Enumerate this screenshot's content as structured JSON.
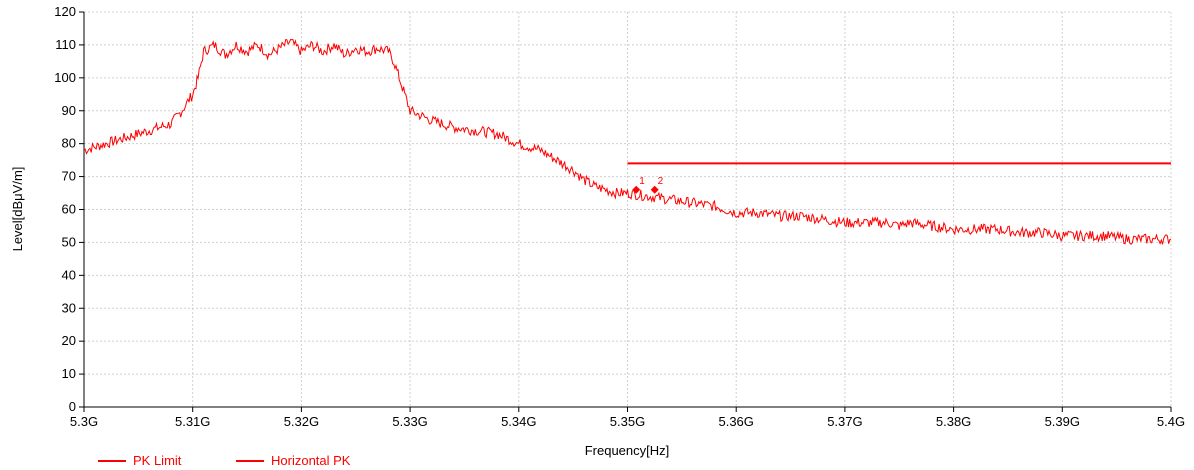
{
  "chart_data": {
    "type": "line",
    "xlabel": "Frequency[Hz]",
    "ylabel": "Level[dBμV/m]",
    "xlim": [
      5.3,
      5.4
    ],
    "ylim": [
      0,
      120
    ],
    "x_ticks": [
      {
        "value": 5.3,
        "label": "5.3G"
      },
      {
        "value": 5.31,
        "label": "5.31G"
      },
      {
        "value": 5.32,
        "label": "5.32G"
      },
      {
        "value": 5.33,
        "label": "5.33G"
      },
      {
        "value": 5.34,
        "label": "5.34G"
      },
      {
        "value": 5.35,
        "label": "5.35G"
      },
      {
        "value": 5.36,
        "label": "5.36G"
      },
      {
        "value": 5.37,
        "label": "5.37G"
      },
      {
        "value": 5.38,
        "label": "5.38G"
      },
      {
        "value": 5.39,
        "label": "5.39G"
      },
      {
        "value": 5.4,
        "label": "5.4G"
      }
    ],
    "y_ticks": [
      0,
      10,
      20,
      30,
      40,
      50,
      60,
      70,
      80,
      90,
      100,
      110,
      120
    ],
    "grid": true,
    "legend_position": "bottom-left",
    "series": [
      {
        "name": "PK Limit",
        "color": "#ff0000",
        "x": [
          5.35,
          5.4
        ],
        "y": [
          74,
          74
        ]
      },
      {
        "name": "Horizontal PK",
        "color": "#ff0000",
        "x": [
          5.3,
          5.302,
          5.304,
          5.306,
          5.308,
          5.3085,
          5.309,
          5.31,
          5.3105,
          5.311,
          5.312,
          5.313,
          5.314,
          5.315,
          5.316,
          5.317,
          5.318,
          5.319,
          5.32,
          5.321,
          5.322,
          5.323,
          5.324,
          5.325,
          5.326,
          5.327,
          5.328,
          5.3285,
          5.329,
          5.3295,
          5.33,
          5.332,
          5.334,
          5.336,
          5.338,
          5.34,
          5.342,
          5.344,
          5.345,
          5.346,
          5.347,
          5.348,
          5.349,
          5.35,
          5.352,
          5.354,
          5.356,
          5.358,
          5.36,
          5.362,
          5.364,
          5.366,
          5.368,
          5.37,
          5.372,
          5.374,
          5.375,
          5.376,
          5.378,
          5.38,
          5.382,
          5.384,
          5.386,
          5.388,
          5.39,
          5.392,
          5.394,
          5.396,
          5.398,
          5.4
        ],
        "y": [
          78,
          80,
          82,
          84,
          86,
          88,
          90,
          95,
          100,
          108,
          110,
          107,
          110,
          108,
          110,
          107,
          109,
          111,
          108,
          110,
          108,
          110,
          107,
          109,
          108,
          109,
          108,
          105,
          100,
          95,
          90,
          87,
          85,
          84,
          83,
          80,
          78,
          74,
          72,
          69,
          67,
          66,
          65,
          65,
          64,
          63,
          62,
          61,
          59,
          59,
          58,
          58,
          57,
          56,
          56,
          56,
          55,
          56,
          55,
          54,
          54,
          54,
          53,
          53,
          52,
          52,
          52,
          51,
          51,
          51
        ]
      }
    ],
    "markers": [
      {
        "label": "1",
        "x": 5.3508,
        "y": 66
      },
      {
        "label": "2",
        "x": 5.3525,
        "y": 66
      }
    ]
  }
}
